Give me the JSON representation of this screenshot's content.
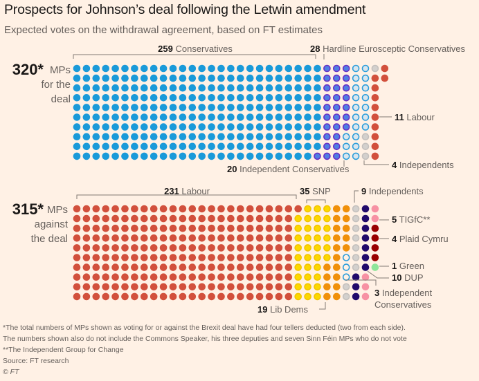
{
  "header": {
    "title": "Prospects for Johnson’s deal following the Letwin amendment",
    "subtitle": "Expected votes on the withdrawal agreement, based on FT estimates"
  },
  "chart_data": {
    "type": "waffle",
    "rows_per_column": 10,
    "fill_order": "column-major, top-to-bottom",
    "groups": [
      {
        "id": "for",
        "total_label": "320*",
        "side_label_lines": [
          "MPs",
          "for the",
          "deal"
        ],
        "segments": [
          {
            "name": "Conservatives",
            "count": 259,
            "label_num": "259",
            "label_text": "Conservatives",
            "fill": "#1a9ad9",
            "ring": "#1a9ad9"
          },
          {
            "name": "Hardline Eurosceptic Conservatives",
            "count": 28,
            "label_num": "28",
            "label_text": "Hardline Eurosceptic Conservatives",
            "fill": "#4f7fe3",
            "ring": "#6a2fc4"
          },
          {
            "name": "Independent Conservatives",
            "count": 20,
            "label_num": "20",
            "label_text": "Independent Conservatives",
            "fill": "#d9e6ee",
            "ring": "#2a9ddb"
          },
          {
            "name": "Independents",
            "count": 4,
            "label_num": "4",
            "label_text": "Independents",
            "fill": "#d3d0cd",
            "ring": "#c4c0bd"
          },
          {
            "name": "Labour",
            "count": 11,
            "label_num": "11",
            "label_text": "Labour",
            "fill": "#d2503c",
            "ring": "#d2503c"
          }
        ]
      },
      {
        "id": "against",
        "total_label": "315*",
        "side_label_lines": [
          "MPs",
          "against",
          "the deal"
        ],
        "segments": [
          {
            "name": "Labour",
            "count": 231,
            "label_num": "231",
            "label_text": "Labour",
            "fill": "#d2503c",
            "ring": "#d2503c"
          },
          {
            "name": "SNP",
            "count": 35,
            "label_num": "35",
            "label_text": "SNP",
            "fill": "#fcd800",
            "ring": "#f2c400"
          },
          {
            "name": "Lib Dems",
            "count": 19,
            "label_num": "19",
            "label_text": "Lib Dems",
            "fill": "#f0900a",
            "ring": "#f0900a"
          },
          {
            "name": "Independent Conservatives",
            "count": 3,
            "label_num": "3",
            "label_text": "Independent",
            "label_text2": "Conservatives",
            "fill": "#fff1e5",
            "ring": "#2a9ddb"
          },
          {
            "name": "Independents",
            "count": 9,
            "label_num": "9",
            "label_text": "Independents",
            "fill": "#d3d0cd",
            "ring": "#c4c0bd"
          },
          {
            "name": "DUP",
            "count": 10,
            "label_num": "10",
            "label_text": "DUP",
            "fill": "#220a6b",
            "ring": "#220a6b"
          },
          {
            "name": "TIGfC",
            "count": 5,
            "label_num": "5",
            "label_text": "TIGfC**",
            "fill": "#f791a3",
            "ring": "#f791a3"
          },
          {
            "name": "Plaid Cymru",
            "count": 4,
            "label_num": "4",
            "label_text": "Plaid Cymru",
            "fill": "#990000",
            "ring": "#990000"
          },
          {
            "name": "Green",
            "count": 1,
            "label_num": "1",
            "label_text": "Green",
            "fill": "#8ee59a",
            "ring": "#8ee59a"
          }
        ]
      }
    ]
  },
  "footnotes": {
    "line1": "*The total numbers of MPs shown as voting for or against the Brexit deal have had four tellers deducted (two from each side).",
    "line2": "The numbers shown also do not include the Commons Speaker, his three deputies and seven Sinn Féin MPs who do not vote",
    "line3": "**The Independent Group for Change",
    "source": "Source: FT research",
    "copyright": "© FT"
  }
}
